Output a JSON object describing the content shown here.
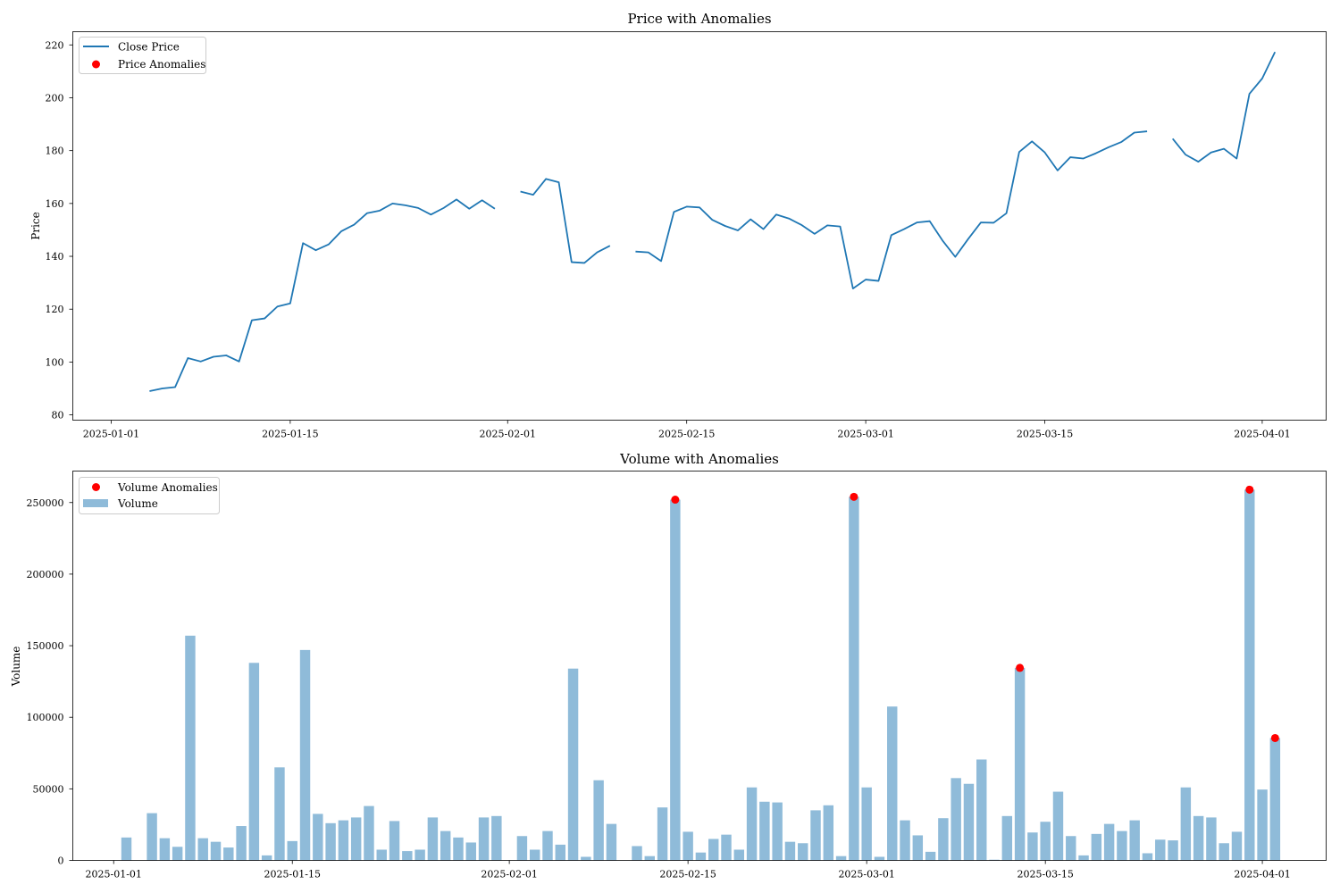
{
  "figure": {
    "background": "#ffffff"
  },
  "chart_data": [
    {
      "type": "line",
      "title": "Price with Anomalies",
      "xlabel": "",
      "ylabel": "Price",
      "x_axis": "date",
      "xlim": [
        "2024-12-29",
        "2025-04-06"
      ],
      "ylim": [
        78,
        225
      ],
      "xticks": [
        "2025-01-01",
        "2025-01-15",
        "2025-02-01",
        "2025-02-15",
        "2025-03-01",
        "2025-03-15",
        "2025-04-01"
      ],
      "yticks": [
        80,
        100,
        120,
        140,
        160,
        180,
        200,
        220
      ],
      "grid": false,
      "legend": {
        "position": "top-left",
        "entries": [
          "Close Price",
          "Price Anomalies"
        ]
      },
      "series": [
        {
          "name": "Close Price",
          "kind": "line",
          "color": "#1f77b4",
          "points": [
            [
              "2025-01-04",
              89.0
            ],
            [
              "2025-01-05",
              90.0
            ],
            [
              "2025-01-06",
              90.5
            ],
            [
              "2025-01-07",
              101.5
            ],
            [
              "2025-01-08",
              100.2
            ],
            [
              "2025-01-09",
              102.0
            ],
            [
              "2025-01-10",
              102.5
            ],
            [
              "2025-01-11",
              100.2
            ],
            [
              "2025-01-12",
              115.8
            ],
            [
              "2025-01-13",
              116.5
            ],
            [
              "2025-01-14",
              121.0
            ],
            [
              "2025-01-15",
              122.2
            ],
            [
              "2025-01-16",
              145.0
            ],
            [
              "2025-01-17",
              142.3
            ],
            [
              "2025-01-18",
              144.5
            ],
            [
              "2025-01-19",
              149.5
            ],
            [
              "2025-01-20",
              152.0
            ],
            [
              "2025-01-21",
              156.3
            ],
            [
              "2025-01-22",
              157.3
            ],
            [
              "2025-01-23",
              160.0
            ],
            [
              "2025-01-24",
              159.3
            ],
            [
              "2025-01-25",
              158.3
            ],
            [
              "2025-01-26",
              155.8
            ],
            [
              "2025-01-27",
              158.3
            ],
            [
              "2025-01-28",
              161.5
            ],
            [
              "2025-01-29",
              158.0
            ],
            [
              "2025-01-30",
              161.2
            ],
            [
              "2025-01-31",
              158.0
            ],
            [
              "2025-02-01",
              null
            ],
            [
              "2025-02-02",
              164.5
            ],
            [
              "2025-02-03",
              163.3
            ],
            [
              "2025-02-04",
              169.3
            ],
            [
              "2025-02-05",
              168.0
            ],
            [
              "2025-02-06",
              137.8
            ],
            [
              "2025-02-07",
              137.5
            ],
            [
              "2025-02-08",
              141.5
            ],
            [
              "2025-02-09",
              144.0
            ],
            [
              "2025-02-10",
              null
            ],
            [
              "2025-02-11",
              141.8
            ],
            [
              "2025-02-12",
              141.5
            ],
            [
              "2025-02-13",
              138.2
            ],
            [
              "2025-02-14",
              156.8
            ],
            [
              "2025-02-15",
              158.8
            ],
            [
              "2025-02-16",
              158.5
            ],
            [
              "2025-02-17",
              153.8
            ],
            [
              "2025-02-18",
              151.5
            ],
            [
              "2025-02-19",
              149.8
            ],
            [
              "2025-02-20",
              154.0
            ],
            [
              "2025-02-21",
              150.3
            ],
            [
              "2025-02-22",
              155.8
            ],
            [
              "2025-02-23",
              154.3
            ],
            [
              "2025-02-24",
              151.8
            ],
            [
              "2025-02-25",
              148.5
            ],
            [
              "2025-02-26",
              151.7
            ],
            [
              "2025-02-27",
              151.3
            ],
            [
              "2025-02-28",
              127.8
            ],
            [
              "2025-03-01",
              131.2
            ],
            [
              "2025-03-02",
              130.7
            ],
            [
              "2025-03-03",
              148.0
            ],
            [
              "2025-03-04",
              150.3
            ],
            [
              "2025-03-05",
              152.8
            ],
            [
              "2025-03-06",
              153.3
            ],
            [
              "2025-03-07",
              146.0
            ],
            [
              "2025-03-08",
              139.8
            ],
            [
              "2025-03-09",
              146.5
            ],
            [
              "2025-03-10",
              152.8
            ],
            [
              "2025-03-11",
              152.7
            ],
            [
              "2025-03-12",
              156.3
            ],
            [
              "2025-03-13",
              179.5
            ],
            [
              "2025-03-14",
              183.5
            ],
            [
              "2025-03-15",
              179.3
            ],
            [
              "2025-03-16",
              172.5
            ],
            [
              "2025-03-17",
              177.5
            ],
            [
              "2025-03-18",
              177.0
            ],
            [
              "2025-03-19",
              179.0
            ],
            [
              "2025-03-20",
              181.3
            ],
            [
              "2025-03-21",
              183.3
            ],
            [
              "2025-03-22",
              186.8
            ],
            [
              "2025-03-23",
              187.3
            ],
            [
              "2025-03-24",
              null
            ],
            [
              "2025-03-25",
              184.5
            ],
            [
              "2025-03-26",
              178.5
            ],
            [
              "2025-03-27",
              175.8
            ],
            [
              "2025-03-28",
              179.3
            ],
            [
              "2025-03-29",
              180.7
            ],
            [
              "2025-03-30",
              177.0
            ],
            [
              "2025-03-31",
              201.5
            ],
            [
              "2025-04-01",
              207.3
            ],
            [
              "2025-04-02",
              217.3
            ]
          ]
        },
        {
          "name": "Price Anomalies",
          "kind": "scatter",
          "color": "#ff0000",
          "points": []
        }
      ]
    },
    {
      "type": "bar",
      "title": "Volume with Anomalies",
      "xlabel": "",
      "ylabel": "Volume",
      "x_axis": "date",
      "xlim": [
        "2024-12-28.8",
        "2025-04-06"
      ],
      "ylim": [
        0,
        272000
      ],
      "xticks": [
        "2025-01-01",
        "2025-01-15",
        "2025-02-01",
        "2025-02-15",
        "2025-03-01",
        "2025-03-15",
        "2025-04-01"
      ],
      "yticks": [
        0,
        50000,
        100000,
        150000,
        200000,
        250000
      ],
      "grid": false,
      "legend": {
        "position": "top-left",
        "entries": [
          "Volume Anomalies",
          "Volume"
        ]
      },
      "series": [
        {
          "name": "Volume",
          "kind": "bar",
          "color": "#1f77b4",
          "opacity": 0.5,
          "points": [
            [
              "2025-01-02",
              16000
            ],
            [
              "2025-01-03",
              0
            ],
            [
              "2025-01-04",
              33000
            ],
            [
              "2025-01-05",
              15500
            ],
            [
              "2025-01-06",
              9500
            ],
            [
              "2025-01-07",
              157000
            ],
            [
              "2025-01-08",
              15500
            ],
            [
              "2025-01-09",
              13000
            ],
            [
              "2025-01-10",
              9000
            ],
            [
              "2025-01-11",
              24000
            ],
            [
              "2025-01-12",
              138000
            ],
            [
              "2025-01-13",
              3500
            ],
            [
              "2025-01-14",
              65000
            ],
            [
              "2025-01-15",
              13500
            ],
            [
              "2025-01-16",
              147000
            ],
            [
              "2025-01-17",
              32500
            ],
            [
              "2025-01-18",
              26000
            ],
            [
              "2025-01-19",
              28000
            ],
            [
              "2025-01-20",
              30000
            ],
            [
              "2025-01-21",
              38000
            ],
            [
              "2025-01-22",
              7500
            ],
            [
              "2025-01-23",
              27500
            ],
            [
              "2025-01-24",
              6500
            ],
            [
              "2025-01-25",
              7500
            ],
            [
              "2025-01-26",
              30000
            ],
            [
              "2025-01-27",
              20500
            ],
            [
              "2025-01-28",
              16000
            ],
            [
              "2025-01-29",
              12500
            ],
            [
              "2025-01-30",
              30000
            ],
            [
              "2025-01-31",
              31000
            ],
            [
              "2025-02-01",
              0
            ],
            [
              "2025-02-02",
              17000
            ],
            [
              "2025-02-03",
              7500
            ],
            [
              "2025-02-04",
              20500
            ],
            [
              "2025-02-05",
              11000
            ],
            [
              "2025-02-06",
              134000
            ],
            [
              "2025-02-07",
              2500
            ],
            [
              "2025-02-08",
              56000
            ],
            [
              "2025-02-09",
              25500
            ],
            [
              "2025-02-10",
              0
            ],
            [
              "2025-02-11",
              10000
            ],
            [
              "2025-02-12",
              3000
            ],
            [
              "2025-02-13",
              37000
            ],
            [
              "2025-02-14",
              252000
            ],
            [
              "2025-02-15",
              20000
            ],
            [
              "2025-02-16",
              5500
            ],
            [
              "2025-02-17",
              15000
            ],
            [
              "2025-02-18",
              18000
            ],
            [
              "2025-02-19",
              7500
            ],
            [
              "2025-02-20",
              51000
            ],
            [
              "2025-02-21",
              41000
            ],
            [
              "2025-02-22",
              40500
            ],
            [
              "2025-02-23",
              13000
            ],
            [
              "2025-02-24",
              12000
            ],
            [
              "2025-02-25",
              35000
            ],
            [
              "2025-02-26",
              38500
            ],
            [
              "2025-02-27",
              3000
            ],
            [
              "2025-02-28",
              254000
            ],
            [
              "2025-03-01",
              51000
            ],
            [
              "2025-03-02",
              2500
            ],
            [
              "2025-03-03",
              107500
            ],
            [
              "2025-03-04",
              28000
            ],
            [
              "2025-03-05",
              17500
            ],
            [
              "2025-03-06",
              6000
            ],
            [
              "2025-03-07",
              29500
            ],
            [
              "2025-03-08",
              57500
            ],
            [
              "2025-03-09",
              53500
            ],
            [
              "2025-03-10",
              70500
            ],
            [
              "2025-03-11",
              500
            ],
            [
              "2025-03-12",
              31000
            ],
            [
              "2025-03-13",
              134500
            ],
            [
              "2025-03-14",
              19500
            ],
            [
              "2025-03-15",
              27000
            ],
            [
              "2025-03-16",
              48000
            ],
            [
              "2025-03-17",
              17000
            ],
            [
              "2025-03-18",
              3500
            ],
            [
              "2025-03-19",
              18500
            ],
            [
              "2025-03-20",
              25500
            ],
            [
              "2025-03-21",
              20500
            ],
            [
              "2025-03-22",
              28000
            ],
            [
              "2025-03-23",
              5000
            ],
            [
              "2025-03-24",
              14500
            ],
            [
              "2025-03-25",
              14000
            ],
            [
              "2025-03-26",
              51000
            ],
            [
              "2025-03-27",
              31000
            ],
            [
              "2025-03-28",
              30000
            ],
            [
              "2025-03-29",
              12000
            ],
            [
              "2025-03-30",
              20000
            ],
            [
              "2025-03-31",
              259000
            ],
            [
              "2025-04-01",
              49500
            ],
            [
              "2025-04-02",
              85500
            ]
          ]
        },
        {
          "name": "Volume Anomalies",
          "kind": "scatter",
          "color": "#ff0000",
          "points": [
            [
              "2025-02-14",
              252000
            ],
            [
              "2025-02-28",
              254000
            ],
            [
              "2025-03-13",
              134500
            ],
            [
              "2025-03-31",
              259000
            ],
            [
              "2025-04-02",
              85500
            ]
          ]
        }
      ]
    }
  ]
}
